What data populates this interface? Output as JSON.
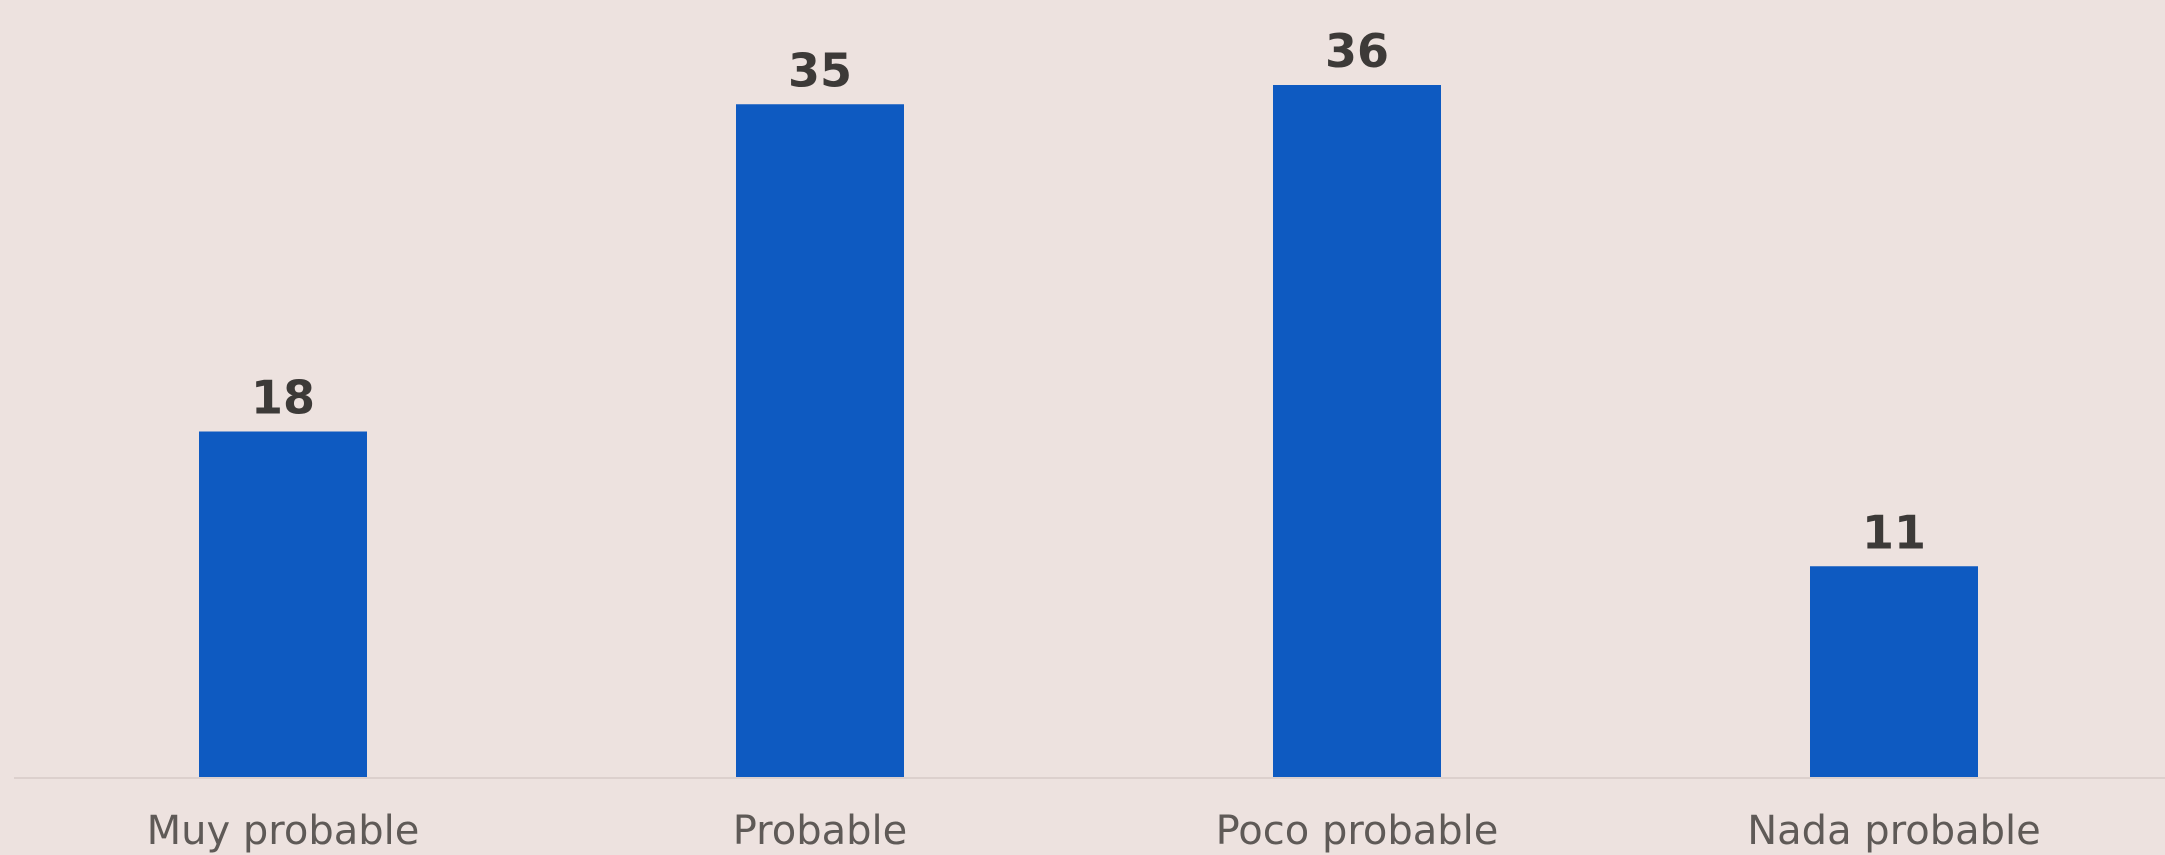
{
  "chart_data": {
    "type": "bar",
    "categories": [
      "Muy probable",
      "Probable",
      "Poco probable",
      "Nada probable"
    ],
    "values": [
      18,
      35,
      36,
      11
    ],
    "title": "",
    "xlabel": "",
    "ylabel": "",
    "ylim": [
      0,
      39
    ],
    "grid": false,
    "legend": "none",
    "data_labels": true,
    "colors": {
      "bar": "#0e5ac1",
      "background": "#ede2df",
      "baseline": "#dcd0cd",
      "value_text": "#3d3a38",
      "category_text": "#5f5a57"
    }
  }
}
